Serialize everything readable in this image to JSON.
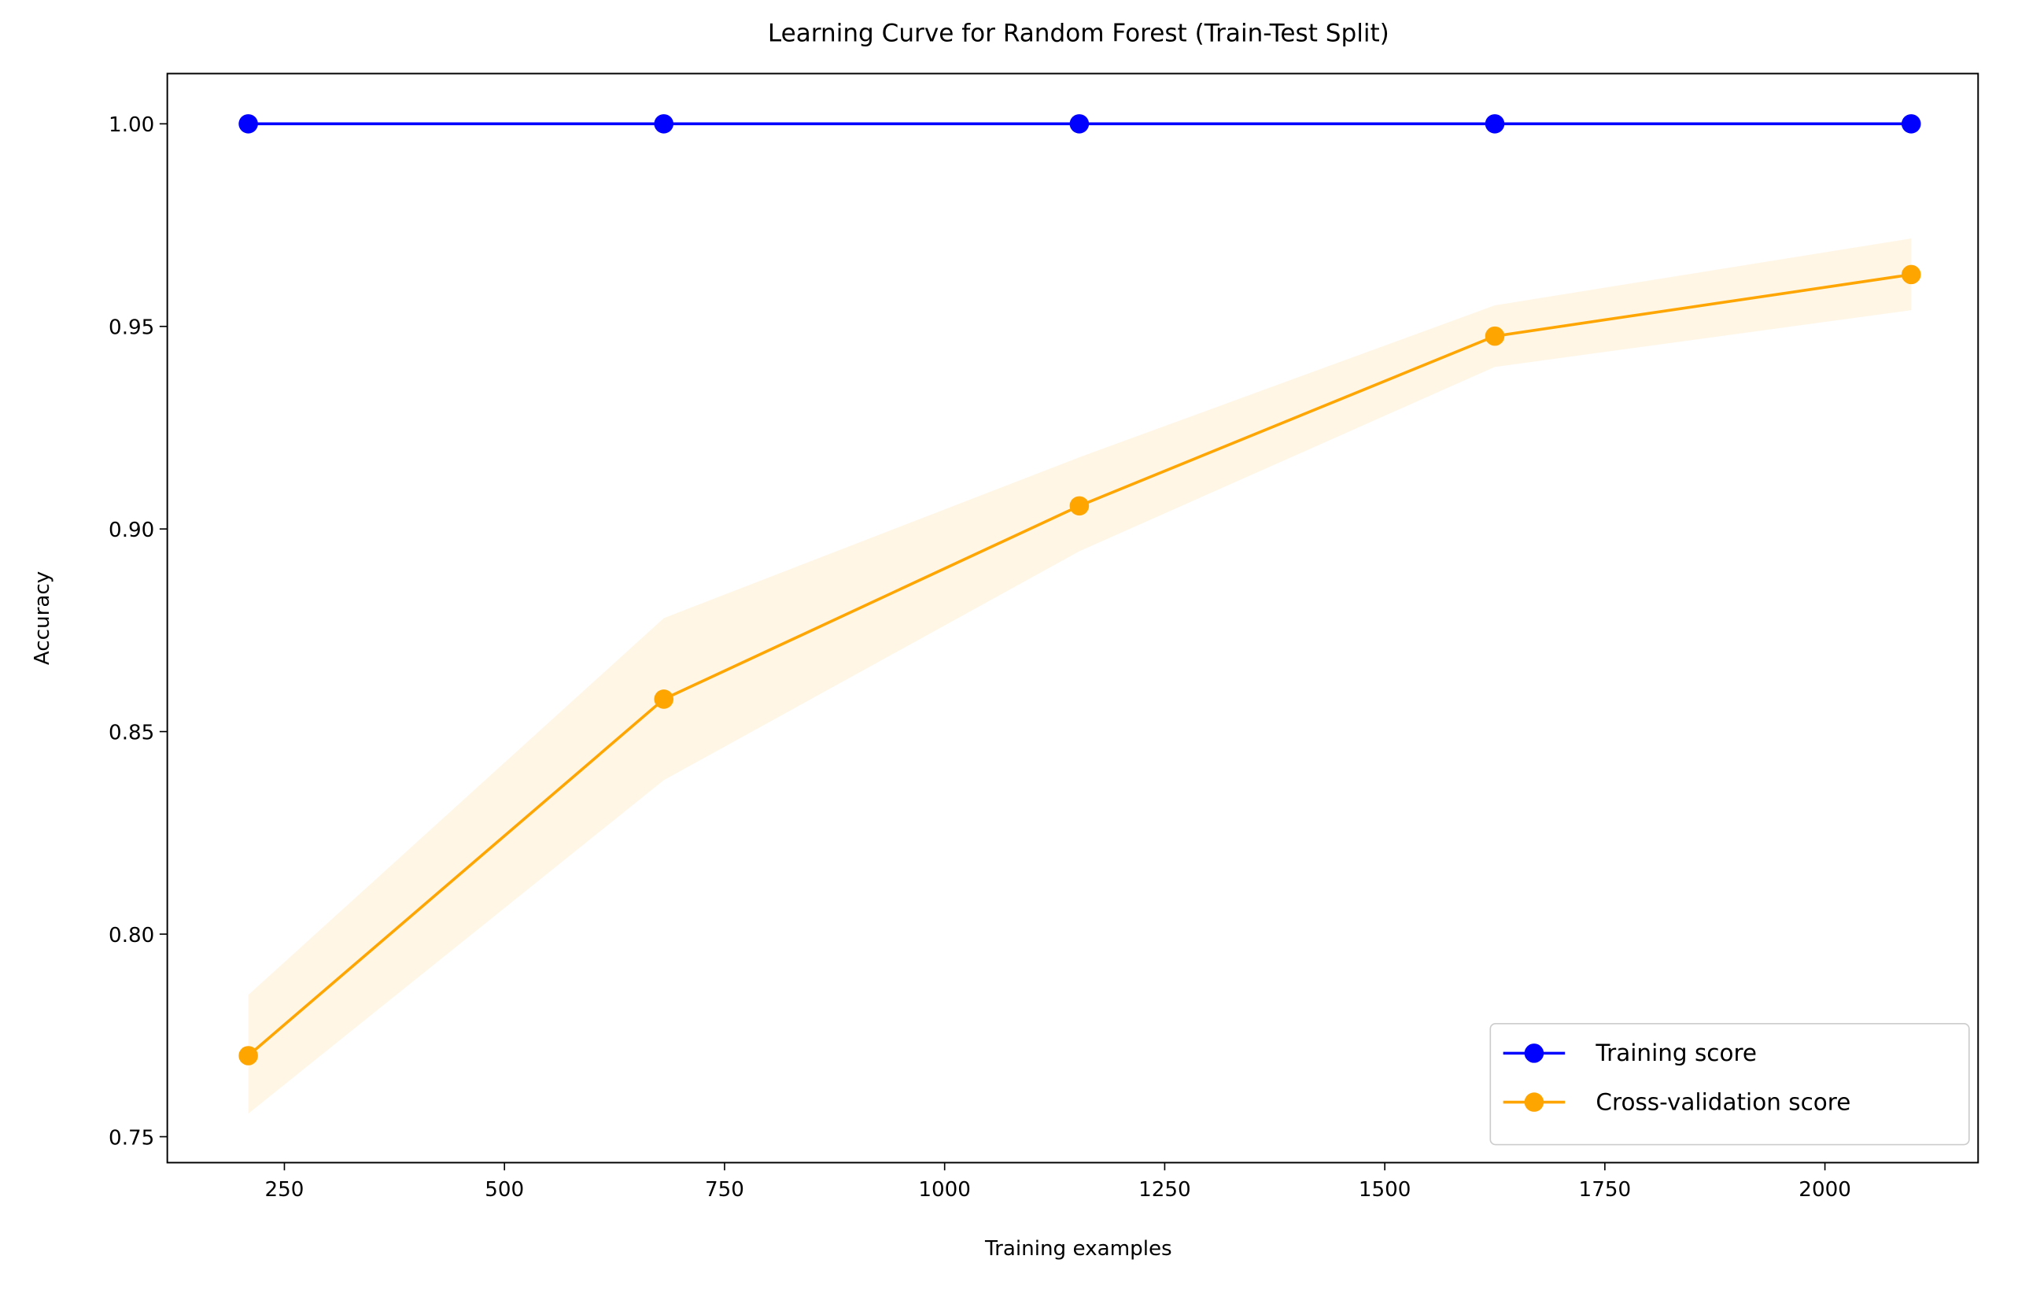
{
  "chart_data": {
    "type": "line",
    "title": "Learning Curve for Random Forest (Train-Test Split)",
    "x_label": "Training examples",
    "y_label": "Accuracy",
    "x": [
      209,
      681,
      1153,
      1625,
      2098
    ],
    "series": [
      {
        "name": "Training score",
        "color": "#0000ff",
        "values": [
          1.0,
          1.0,
          1.0,
          1.0,
          1.0
        ]
      },
      {
        "name": "Cross-validation score",
        "color": "#ffa500",
        "values": [
          0.77,
          0.858,
          0.9057,
          0.9476,
          0.9628
        ],
        "band_lower": [
          0.7557,
          0.838,
          0.8945,
          0.94,
          0.954
        ],
        "band_upper": [
          0.785,
          0.878,
          0.9177,
          0.9552,
          0.9717
        ]
      }
    ],
    "xlim": [
      117,
      2174
    ],
    "ylim": [
      0.7436,
      1.0124
    ],
    "xticks": [
      250,
      500,
      750,
      1000,
      1250,
      1500,
      1750,
      2000
    ],
    "yticks": [
      {
        "value": 0.75,
        "label": "0.75"
      },
      {
        "value": 0.8,
        "label": "0.80"
      },
      {
        "value": 0.85,
        "label": "0.85"
      },
      {
        "value": 0.9,
        "label": "0.90"
      },
      {
        "value": 0.95,
        "label": "0.95"
      },
      {
        "value": 1.0,
        "label": "1.00"
      }
    ],
    "grid": false,
    "legend": "lower right"
  }
}
